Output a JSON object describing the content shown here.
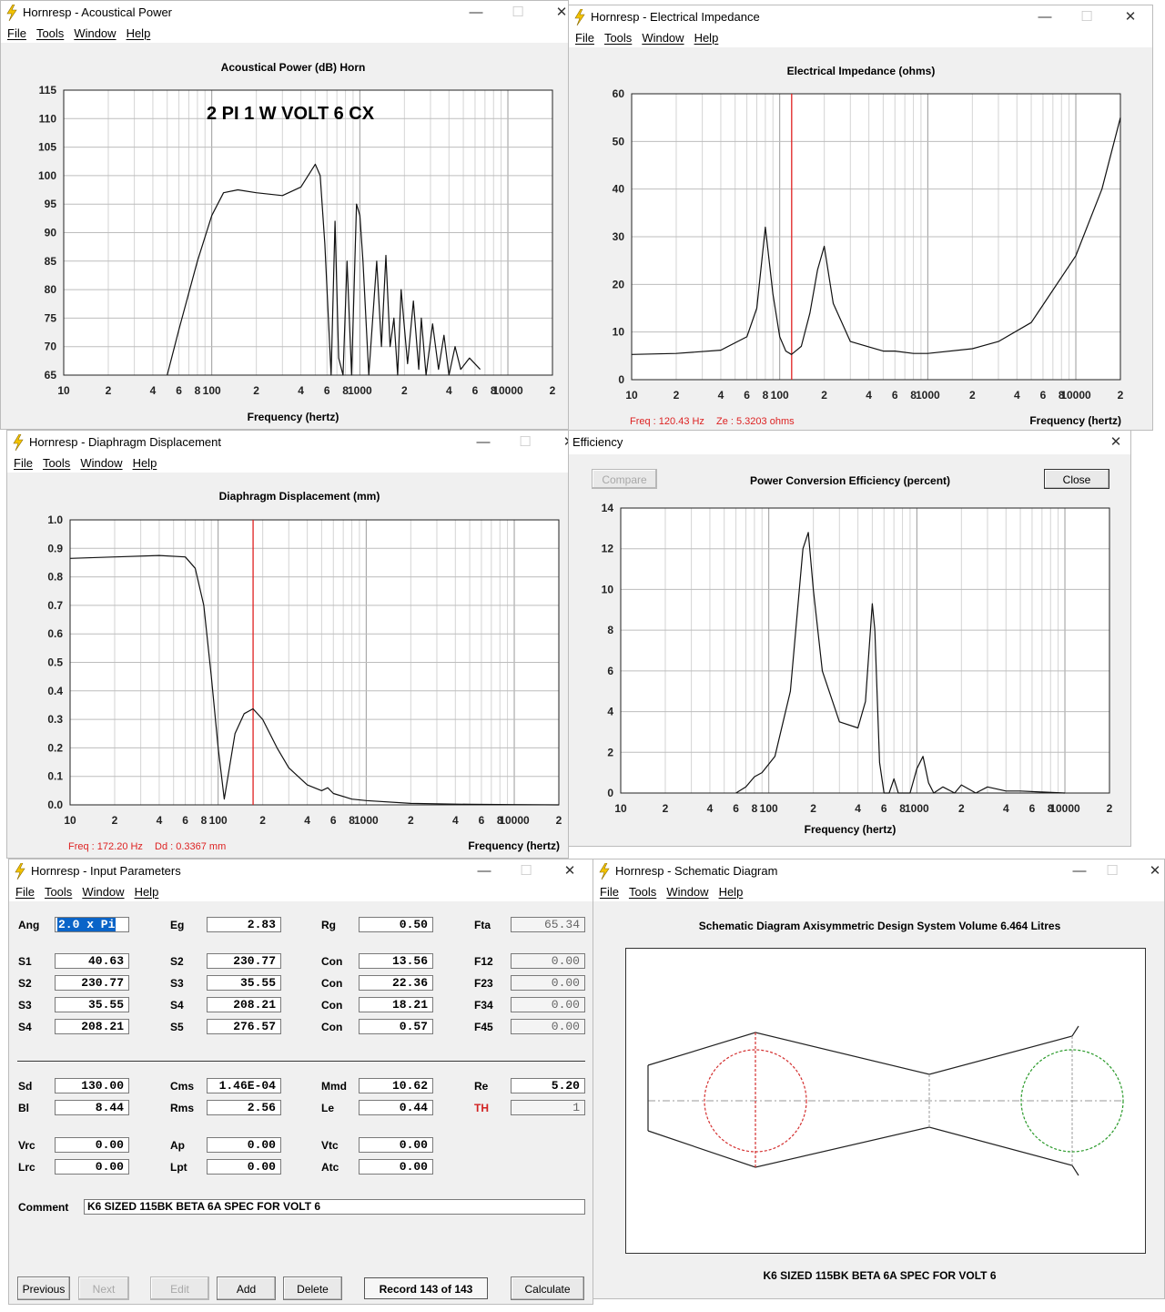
{
  "menu": [
    "File",
    "Tools",
    "Window",
    "Help"
  ],
  "acoustical": {
    "window_title": "Hornresp - Acoustical Power",
    "plot_title": "Acoustical Power (dB)   Horn",
    "annotation": "2 PI 1 W  VOLT 6 CX",
    "xlabel": "Frequency (hertz)",
    "y_ticks": [
      "115",
      "110",
      "105",
      "100",
      "95",
      "90",
      "85",
      "80",
      "75",
      "70",
      "65"
    ],
    "x_ticks": [
      "10",
      "2",
      "4",
      "6",
      "8",
      "100",
      "2",
      "4",
      "6",
      "8",
      "1000",
      "2",
      "4",
      "6",
      "8",
      "10000",
      "2"
    ]
  },
  "impedance": {
    "window_title": "Hornresp - Electrical Impedance",
    "plot_title": "Electrical Impedance (ohms)",
    "xlabel": "Frequency (hertz)",
    "readout_freq": "Freq : 120.43 Hz",
    "readout_value": "Ze : 5.3203 ohms",
    "y_ticks": [
      "60",
      "50",
      "40",
      "30",
      "20",
      "10",
      "0"
    ],
    "x_ticks": [
      "10",
      "2",
      "4",
      "6",
      "8",
      "100",
      "2",
      "4",
      "6",
      "8",
      "1000",
      "2",
      "4",
      "6",
      "8",
      "10000",
      "2"
    ]
  },
  "displacement": {
    "window_title": "Hornresp - Diaphragm Displacement",
    "plot_title": "Diaphragm Displacement (mm)",
    "xlabel": "Frequency (hertz)",
    "readout_freq": "Freq : 172.20 Hz",
    "readout_value": "Dd : 0.3367 mm",
    "y_ticks": [
      "1.0",
      "0.9",
      "0.8",
      "0.7",
      "0.6",
      "0.5",
      "0.4",
      "0.3",
      "0.2",
      "0.1",
      "0.0"
    ],
    "x_ticks": [
      "10",
      "2",
      "4",
      "6",
      "8",
      "100",
      "2",
      "4",
      "6",
      "8",
      "1000",
      "2",
      "4",
      "6",
      "8",
      "10000",
      "2"
    ]
  },
  "efficiency": {
    "window_title": "Efficiency",
    "plot_title": "Power Conversion Efficiency (percent)",
    "xlabel": "Frequency (hertz)",
    "compare_label": "Compare",
    "close_label": "Close",
    "y_ticks": [
      "14",
      "12",
      "10",
      "8",
      "6",
      "4",
      "2",
      "0"
    ],
    "x_ticks": [
      "10",
      "2",
      "4",
      "6",
      "8",
      "100",
      "2",
      "4",
      "6",
      "8",
      "1000",
      "2",
      "4",
      "6",
      "8",
      "10000",
      "2"
    ]
  },
  "input": {
    "window_title": "Hornresp - Input Parameters",
    "rows": [
      [
        {
          "l": "Ang",
          "v": "2.0 x Pi",
          "sel": true
        },
        {
          "l": "Eg",
          "v": "2.83"
        },
        {
          "l": "Rg",
          "v": "0.50"
        },
        {
          "l": "Fta",
          "v": "65.34",
          "ro": true
        }
      ],
      [
        {
          "l": "S1",
          "v": "40.63"
        },
        {
          "l": "S2",
          "v": "230.77"
        },
        {
          "l": "Con",
          "v": "13.56"
        },
        {
          "l": "F12",
          "v": "0.00",
          "ro": true
        }
      ],
      [
        {
          "l": "S2",
          "v": "230.77"
        },
        {
          "l": "S3",
          "v": "35.55"
        },
        {
          "l": "Con",
          "v": "22.36"
        },
        {
          "l": "F23",
          "v": "0.00",
          "ro": true
        }
      ],
      [
        {
          "l": "S3",
          "v": "35.55"
        },
        {
          "l": "S4",
          "v": "208.21"
        },
        {
          "l": "Con",
          "v": "18.21"
        },
        {
          "l": "F34",
          "v": "0.00",
          "ro": true
        }
      ],
      [
        {
          "l": "S4",
          "v": "208.21"
        },
        {
          "l": "S5",
          "v": "276.57"
        },
        {
          "l": "Con",
          "v": "0.57"
        },
        {
          "l": "F45",
          "v": "0.00",
          "ro": true
        }
      ],
      [
        {
          "l": "Sd",
          "v": "130.00"
        },
        {
          "l": "Cms",
          "v": "1.46E-04"
        },
        {
          "l": "Mmd",
          "v": "10.62"
        },
        {
          "l": "Re",
          "v": "5.20"
        }
      ],
      [
        {
          "l": "Bl",
          "v": "8.44"
        },
        {
          "l": "Rms",
          "v": "2.56"
        },
        {
          "l": "Le",
          "v": "0.44"
        },
        {
          "l": "TH",
          "v": "1",
          "ro": true,
          "red": true
        }
      ],
      [
        {
          "l": "Vrc",
          "v": "0.00"
        },
        {
          "l": "Ap",
          "v": "0.00"
        },
        {
          "l": "Vtc",
          "v": "0.00"
        }
      ],
      [
        {
          "l": "Lrc",
          "v": "0.00"
        },
        {
          "l": "Lpt",
          "v": "0.00"
        },
        {
          "l": "Atc",
          "v": "0.00"
        }
      ]
    ],
    "comment_label": "Comment",
    "comment_value": "K6 SIZED 115BK  BETA 6A SPEC FOR VOLT 6",
    "buttons": {
      "previous": "Previous",
      "next": "Next",
      "edit": "Edit",
      "add": "Add",
      "delete": "Delete",
      "calculate": "Calculate"
    },
    "record": "Record 143 of 143"
  },
  "schematic": {
    "window_title": "Hornresp - Schematic Diagram",
    "header": "Schematic Diagram   Axisymmetric Design   System Volume 6.464 Litres",
    "caption": "K6 SIZED 115BK  BETA 6A SPEC FOR VOLT 6"
  },
  "colors": {
    "cursor": "#e02020",
    "driver1": "#d43030",
    "driver2": "#2a9a2a",
    "readout": "#d22222",
    "selection": "#0a64c8"
  },
  "chart_data": [
    {
      "type": "line",
      "title": "Acoustical Power (dB)   Horn",
      "xlabel": "Frequency (hertz)",
      "ylabel": "",
      "xscale": "log",
      "xlim": [
        10,
        20000
      ],
      "ylim": [
        65,
        115
      ],
      "series": [
        {
          "x": [
            50,
            60,
            80,
            100,
            120,
            150,
            200,
            300,
            400,
            500,
            540,
            580,
            640,
            680,
            720,
            770,
            820,
            880,
            950,
            1000,
            1050,
            1150,
            1300,
            1400,
            1500,
            1600,
            1700,
            1800,
            1900,
            2100,
            2300,
            2500,
            2600,
            2800,
            3100,
            3400,
            3700,
            4000,
            4400,
            4800,
            5500,
            6500
          ],
          "y": [
            65,
            73,
            85,
            93,
            97,
            97.5,
            97,
            96.5,
            98,
            102,
            100,
            88,
            65,
            92,
            68,
            65,
            85,
            65,
            95,
            93,
            85,
            65,
            85,
            70,
            86,
            70,
            75,
            65,
            80,
            67,
            78,
            66,
            75,
            65,
            74,
            66,
            72,
            65,
            70,
            66,
            68,
            66
          ]
        }
      ]
    },
    {
      "type": "line",
      "title": "Electrical Impedance (ohms)",
      "xlabel": "Frequency (hertz)",
      "ylabel": "",
      "xscale": "log",
      "xlim": [
        10,
        20000
      ],
      "ylim": [
        0,
        60
      ],
      "cursor_x": 120.43,
      "series": [
        {
          "x": [
            10,
            20,
            40,
            60,
            70,
            80,
            90,
            100,
            110,
            120,
            140,
            160,
            180,
            200,
            230,
            300,
            500,
            600,
            800,
            1000,
            2000,
            3000,
            5000,
            10000,
            15000,
            20000
          ],
          "y": [
            5.3,
            5.5,
            6.2,
            9,
            15,
            32,
            18,
            9,
            6,
            5.3,
            7,
            14,
            23,
            28,
            16,
            8,
            6,
            6,
            5.5,
            5.5,
            6.5,
            8,
            12,
            26,
            40,
            55
          ]
        }
      ]
    },
    {
      "type": "line",
      "title": "Diaphragm Displacement (mm)",
      "xlabel": "Frequency (hertz)",
      "ylabel": "",
      "xscale": "log",
      "xlim": [
        10,
        20000
      ],
      "ylim": [
        0,
        1.0
      ],
      "cursor_x": 172.2,
      "series": [
        {
          "x": [
            10,
            20,
            40,
            60,
            70,
            80,
            90,
            100,
            110,
            130,
            150,
            172,
            200,
            250,
            300,
            400,
            500,
            550,
            600,
            800,
            1000,
            2000,
            5000,
            10000,
            20000
          ],
          "y": [
            0.865,
            0.87,
            0.875,
            0.87,
            0.83,
            0.7,
            0.45,
            0.2,
            0.02,
            0.25,
            0.32,
            0.337,
            0.3,
            0.2,
            0.13,
            0.07,
            0.05,
            0.06,
            0.04,
            0.02,
            0.015,
            0.005,
            0.002,
            0.001,
            0.0
          ]
        }
      ]
    },
    {
      "type": "line",
      "title": "Power Conversion Efficiency (percent)",
      "xlabel": "Frequency (hertz)",
      "ylabel": "",
      "xscale": "log",
      "xlim": [
        10,
        20000
      ],
      "ylim": [
        0,
        14
      ],
      "series": [
        {
          "x": [
            60,
            70,
            80,
            90,
            110,
            140,
            170,
            185,
            200,
            230,
            300,
            400,
            450,
            500,
            520,
            560,
            600,
            650,
            700,
            750,
            800,
            900,
            1000,
            1100,
            1200,
            1300,
            1500,
            1800,
            2000,
            2500,
            3000,
            4000,
            5000,
            7000,
            10000
          ],
          "y": [
            0,
            0.3,
            0.8,
            1.0,
            1.8,
            5,
            12,
            12.8,
            10,
            6,
            3.5,
            3.2,
            4.5,
            9.3,
            8,
            1.5,
            0,
            0,
            0.7,
            0,
            0,
            0,
            1.2,
            1.8,
            0.5,
            0,
            0.3,
            0,
            0.4,
            0,
            0.3,
            0.1,
            0.1,
            0.05,
            0
          ]
        }
      ]
    }
  ]
}
